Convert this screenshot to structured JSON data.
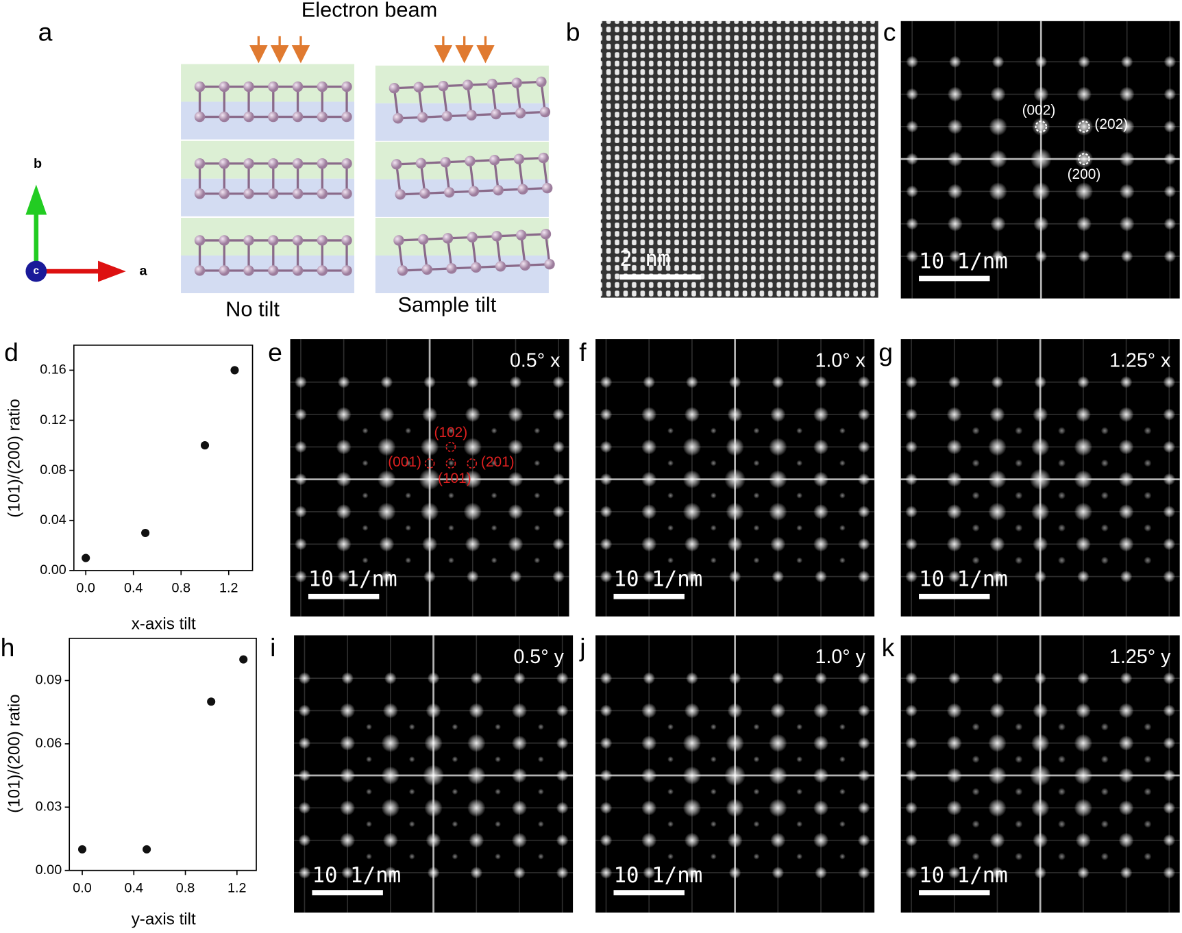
{
  "figure": {
    "title": "Electron beam",
    "panel_letters": [
      "a",
      "b",
      "c",
      "d",
      "e",
      "f",
      "g",
      "h",
      "i",
      "j",
      "k"
    ],
    "panel_a": {
      "axis_labels": [
        "b",
        "a",
        "c"
      ],
      "captions": [
        "No tilt",
        "Sample tilt"
      ]
    },
    "panel_b": {
      "scale_bar": "2 nm"
    },
    "fft_panels": [
      {
        "scale_bar": "10 1/nm",
        "spot_labels": [
          "(002)",
          "(202)",
          "(200)"
        ]
      },
      {
        "scale_bar": "10 1/nm",
        "tilt": "0.5° x",
        "spot_labels": [
          "(102)",
          "(001)",
          "(201)",
          "(101)"
        ]
      },
      {
        "scale_bar": "10 1/nm",
        "tilt": "1.0° x"
      },
      {
        "scale_bar": "10 1/nm",
        "tilt": "1.25° x"
      },
      {
        "scale_bar": "10 1/nm",
        "tilt": "0.5° y"
      },
      {
        "scale_bar": "10 1/nm",
        "tilt": "1.0° y"
      },
      {
        "scale_bar": "10 1/nm",
        "tilt": "1.25° y"
      }
    ]
  },
  "chart_data": [
    {
      "type": "scatter",
      "x_label": "x-axis tilt",
      "y_label": "(101)/(200) ratio",
      "x": [
        0,
        0.5,
        1.0,
        1.25
      ],
      "values": [
        0.01,
        0.03,
        0.1,
        0.16
      ],
      "color": "#111111",
      "xlim": [
        -0.1,
        1.4
      ],
      "ylim": [
        0,
        0.18
      ],
      "xticks": [
        {
          "value": 0,
          "label": "0.0"
        },
        0.4,
        0.8,
        1.2
      ],
      "yticks": [
        {
          "value": 0,
          "label": "0.00"
        },
        0.04,
        0.08,
        0.12,
        0.16
      ]
    },
    {
      "type": "scatter",
      "x_label": "y-axis tilt",
      "y_label": "(101)/(200) ratio",
      "x": [
        0,
        0.5,
        1.0,
        1.25
      ],
      "values": [
        0.01,
        0.01,
        0.08,
        0.1
      ],
      "color": "#111111",
      "xlim": [
        -0.1,
        1.35
      ],
      "ylim": [
        0,
        0.11
      ],
      "xticks": [
        {
          "value": 0,
          "label": "0.0"
        },
        0.4,
        0.8,
        1.2
      ],
      "yticks": [
        {
          "value": 0,
          "label": "0.00"
        },
        0.03,
        0.06,
        0.09
      ]
    }
  ]
}
